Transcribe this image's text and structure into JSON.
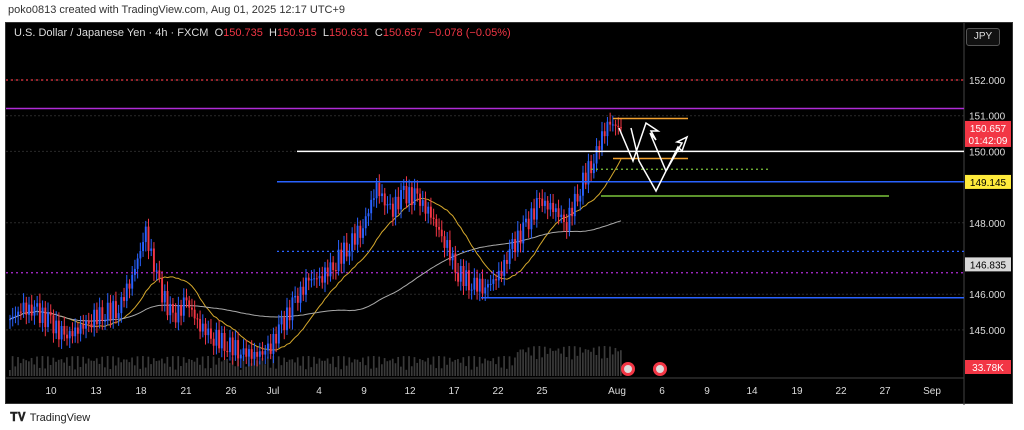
{
  "credit": "poko0813 created with TradingView.com, Aug 01, 2025 12:17 UTC+9",
  "legend": {
    "symbol": "U.S. Dollar / Japanese Yen · 4h · FXCM",
    "o_label": "O",
    "o": "150.735",
    "h_label": "H",
    "h": "150.915",
    "l_label": "L",
    "l": "150.631",
    "c_label": "C",
    "c": "150.657",
    "change": "−0.078 (−0.05%)"
  },
  "currency_button": "JPY",
  "footer": {
    "logo_text": "TradingView"
  },
  "colors": {
    "up": "#2962ff",
    "down": "#f23645",
    "fast_ma": "#d4a72c",
    "slow_ma": "#aaaaaa"
  },
  "chart_data": {
    "type": "candlestick",
    "ylim": [
      144.3,
      152.8
    ],
    "y_ticks": [
      "152.000",
      "151.000",
      "150.000",
      "148.000",
      "146.000",
      "145.000"
    ],
    "y_tick_values": [
      152,
      151,
      150,
      148,
      146,
      145
    ],
    "x_ticks": [
      "10",
      "13",
      "18",
      "21",
      "26",
      "Jul",
      "4",
      "9",
      "12",
      "17",
      "22",
      "25",
      "Aug",
      "6",
      "9",
      "14",
      "19",
      "22",
      "27",
      "Sep"
    ],
    "close_path": [
      145.3,
      145.6,
      145.5,
      145.2,
      144.8,
      145.0,
      145.3,
      145.5,
      145.6,
      146.5,
      147.7,
      146.2,
      145.3,
      145.8,
      145.1,
      144.8,
      144.6,
      144.4,
      144.3,
      144.4,
      145.1,
      145.8,
      146.4,
      146.5,
      146.9,
      147.4,
      147.9,
      149.0,
      148.3,
      148.8,
      148.7,
      148.2,
      147.5,
      146.6,
      146.3,
      146.2,
      146.5,
      147.3,
      147.9,
      148.6,
      148.4,
      148.0,
      149.0,
      149.8,
      150.8,
      150.66
    ],
    "levels": [
      {
        "price": 152.0,
        "color": "#f23645",
        "style": "dotted"
      },
      {
        "price": 151.2,
        "color": "#b02cd6",
        "style": "solid"
      },
      {
        "price": 150.0,
        "color": "#ffffff",
        "style": "solid"
      },
      {
        "price": 149.15,
        "color": "#2962ff",
        "style": "solid"
      },
      {
        "price": 149.5,
        "color": "#7bc43a",
        "style": "dotted"
      },
      {
        "price": 148.75,
        "color": "#7bc43a",
        "style": "solid"
      },
      {
        "price": 147.2,
        "color": "#2962ff",
        "style": "dotted"
      },
      {
        "price": 146.6,
        "color": "#b02cd6",
        "style": "dotted"
      },
      {
        "price": 145.9,
        "color": "#2962ff",
        "style": "solid"
      },
      {
        "price": 150.92,
        "color": "#f0a030",
        "style": "solid"
      },
      {
        "price": 149.8,
        "color": "#f0a030",
        "style": "solid"
      }
    ],
    "price_labels": [
      {
        "text": "150.657",
        "sub": "01:42:09",
        "price": 150.657,
        "bg": "#f23645",
        "fg": "#ffffff"
      },
      {
        "text": "149.145",
        "price": 149.145,
        "bg": "#ffeb3b",
        "fg": "#000000"
      },
      {
        "text": "146.835",
        "price": 146.835,
        "bg": "#d8d8d8",
        "fg": "#000000"
      }
    ],
    "volume_label": "33.78K"
  }
}
